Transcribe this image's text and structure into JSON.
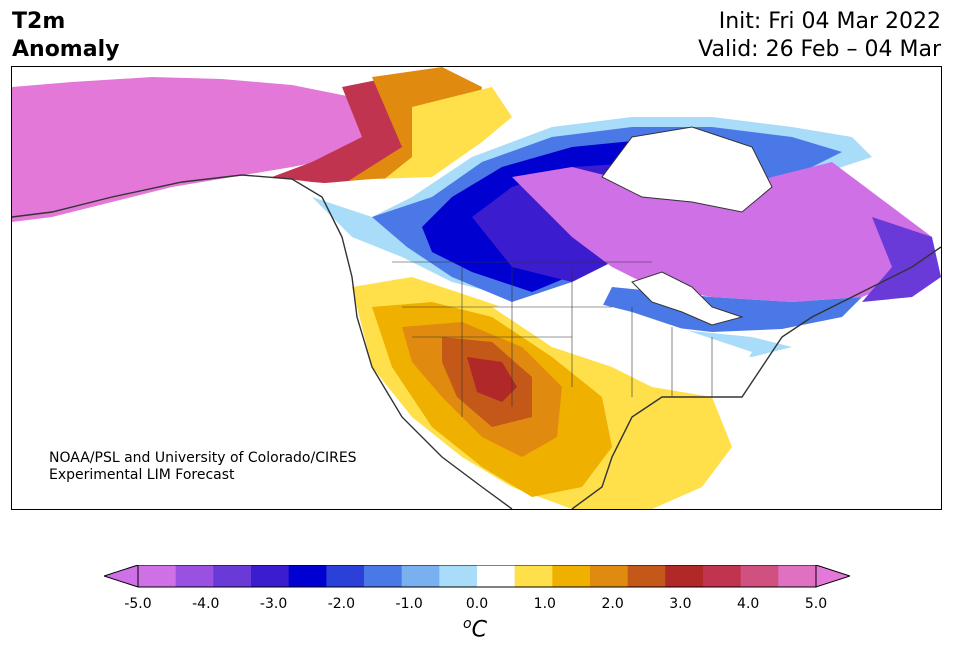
{
  "title": {
    "variable": "T2m",
    "subtitle": "Anomaly",
    "init": "Init: Fri 04 Mar 2022",
    "valid": "Valid: 26 Feb – 04 Mar"
  },
  "credit": {
    "line1": "NOAA/PSL and University of Colorado/CIRES",
    "line2": "Experimental LIM Forecast"
  },
  "colorbar": {
    "units_sup": "o",
    "units_main": "C",
    "ticks": [
      "-5.0",
      "-4.0",
      "-3.0",
      "-2.0",
      "-1.0",
      "0.0",
      "1.0",
      "2.0",
      "3.0",
      "4.0",
      "5.0"
    ],
    "colors": [
      "#d070e6",
      "#9a50e0",
      "#6a3ad8",
      "#3c1ccf",
      "#0000d0",
      "#2a40d8",
      "#4a78e6",
      "#78b0f0",
      "#a8dcf8",
      "#ffffff",
      "#ffe04a",
      "#f0b000",
      "#e08a10",
      "#c45818",
      "#b02828",
      "#c03450",
      "#d05080",
      "#e070c0"
    ],
    "under_color": "#d070e6",
    "over_color": "#e478d8"
  },
  "colors": {
    "ocean": "#ffffff",
    "coast": "#333333",
    "magenta": "#e478d8",
    "violet": "#d070e6"
  }
}
